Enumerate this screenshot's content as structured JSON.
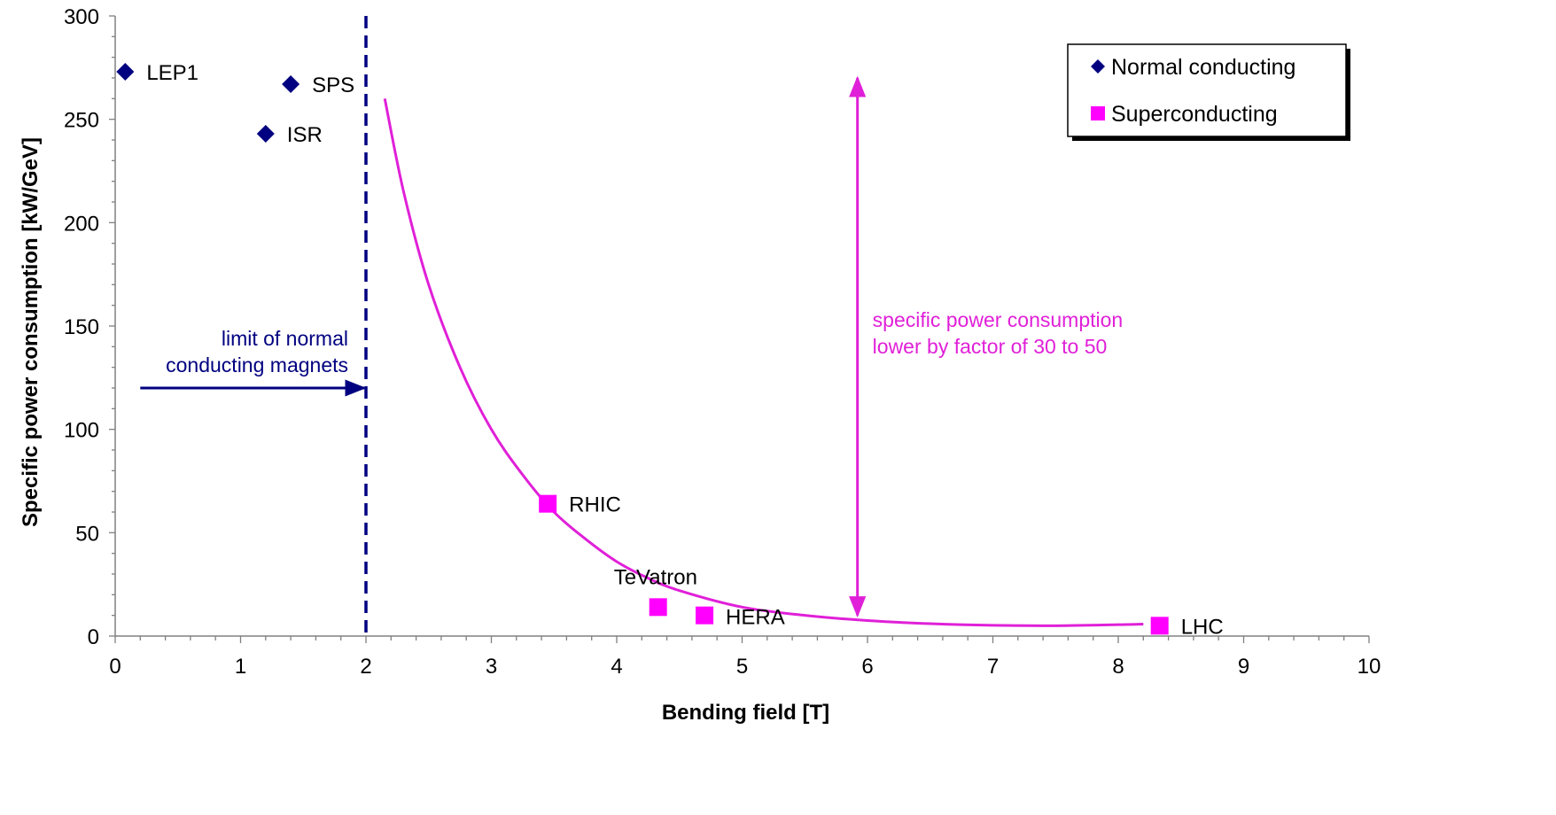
{
  "chart_data": {
    "type": "scatter",
    "title": "",
    "xlabel": "Bending field [T]",
    "ylabel": "Specific power consumption [kW/GeV]",
    "xlim": [
      0,
      10
    ],
    "ylim": [
      0,
      300
    ],
    "x_ticks": [
      0,
      1,
      2,
      3,
      4,
      5,
      6,
      7,
      8,
      9,
      10
    ],
    "y_ticks": [
      0,
      50,
      100,
      150,
      200,
      250,
      300
    ],
    "grid": false,
    "legend_position": "top-right",
    "series": [
      {
        "name": "Normal conducting",
        "marker": "diamond",
        "color": "#000080",
        "points": [
          {
            "label": "LEP1",
            "x": 0.08,
            "y": 273
          },
          {
            "label": "SPS",
            "x": 1.4,
            "y": 267
          },
          {
            "label": "ISR",
            "x": 1.2,
            "y": 243
          }
        ]
      },
      {
        "name": "Superconducting",
        "marker": "square",
        "color": "#FF00FF",
        "points": [
          {
            "label": "RHIC",
            "x": 3.45,
            "y": 64
          },
          {
            "label": "TeVatron",
            "x": 4.33,
            "y": 14
          },
          {
            "label": "HERA",
            "x": 4.7,
            "y": 10
          },
          {
            "label": "LHC",
            "x": 8.33,
            "y": 5
          }
        ]
      }
    ],
    "trend_curve": {
      "color": "#E020D8",
      "points": [
        [
          2.15,
          260
        ],
        [
          2.3,
          215
        ],
        [
          2.5,
          170
        ],
        [
          2.75,
          130
        ],
        [
          3.0,
          100
        ],
        [
          3.25,
          78
        ],
        [
          3.5,
          60
        ],
        [
          3.75,
          47
        ],
        [
          4.0,
          36
        ],
        [
          4.25,
          28
        ],
        [
          4.5,
          22
        ],
        [
          5.0,
          14
        ],
        [
          5.5,
          10
        ],
        [
          6.0,
          7.5
        ],
        [
          6.5,
          6
        ],
        [
          7.0,
          5.2
        ],
        [
          7.5,
          5
        ],
        [
          8.0,
          5.5
        ],
        [
          8.2,
          5.8
        ]
      ]
    },
    "annotations": {
      "limit_line_x": 2,
      "limit_text": [
        "limit of normal",
        "conducting magnets"
      ],
      "limit_arrow": {
        "x_from": 0.2,
        "x_to": 2,
        "y": 120
      },
      "factor_text": [
        "specific power consumption",
        "lower by factor of 30 to 50"
      ],
      "factor_arrow": {
        "x": 5.92,
        "y_from": 10,
        "y_to": 270
      }
    }
  }
}
